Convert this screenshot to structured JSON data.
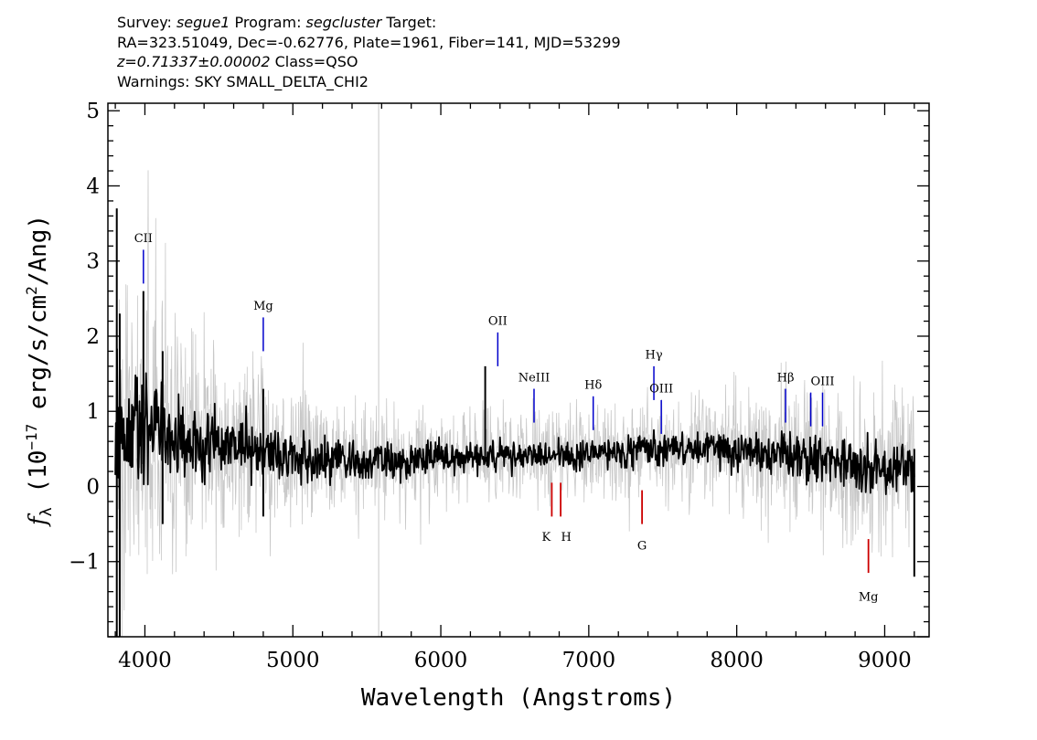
{
  "header": {
    "line1": {
      "survey_label": "Survey: ",
      "survey": "segue1",
      "program_label": " Program: ",
      "program": "segcluster",
      "target_label": " Target:"
    },
    "line2": "RA=323.51049, Dec=-0.62776, Plate=1961, Fiber=141, MJD=53299",
    "line3": {
      "z": "z=0.71337±0.00002",
      "class": " Class=QSO"
    },
    "line4": "Warnings: SKY SMALL_DELTA_CHI2"
  },
  "chart_data": {
    "type": "line",
    "xlabel": "Wavelength (Angstroms)",
    "ylabel_parts": [
      "f",
      "λ",
      " (10",
      "−17",
      " erg/s/cm",
      "2",
      "/Ang)"
    ],
    "xlim": [
      3750,
      9300
    ],
    "ylim": [
      -2.0,
      5.1
    ],
    "x_ticks": [
      4000,
      5000,
      6000,
      7000,
      8000,
      9000
    ],
    "x_tick_labels": [
      "4000",
      "5000",
      "6000",
      "7000",
      "8000",
      "9000"
    ],
    "y_ticks": [
      -1,
      0,
      1,
      2,
      3,
      4,
      5
    ],
    "y_tick_labels": [
      "−1",
      "0",
      "1",
      "2",
      "3",
      "4",
      "5"
    ],
    "x_minor_step": 200,
    "y_minor_step": 0.2,
    "series": [
      {
        "role": "flux",
        "color": "#000000",
        "x": [
          3800,
          3850,
          3900,
          3950,
          4000,
          4050,
          4100,
          4150,
          4200,
          4250,
          4300,
          4350,
          4400,
          4450,
          4500,
          4550,
          4600,
          4650,
          4700,
          4750,
          4800,
          4850,
          4900,
          4950,
          5000,
          5100,
          5200,
          5300,
          5400,
          5500,
          5600,
          5700,
          5800,
          5900,
          6000,
          6100,
          6200,
          6300,
          6400,
          6500,
          6600,
          6700,
          6800,
          6900,
          7000,
          7100,
          7200,
          7300,
          7400,
          7500,
          7600,
          7700,
          7800,
          7900,
          8000,
          8100,
          8200,
          8300,
          8400,
          8500,
          8600,
          8700,
          8800,
          8900,
          9000,
          9100,
          9200
        ],
        "y": [
          0.7,
          0.75,
          0.8,
          0.8,
          0.78,
          0.75,
          0.72,
          0.7,
          0.68,
          0.66,
          0.64,
          0.62,
          0.6,
          0.58,
          0.56,
          0.55,
          0.55,
          0.54,
          0.52,
          0.5,
          0.48,
          0.46,
          0.45,
          0.44,
          0.42,
          0.4,
          0.38,
          0.36,
          0.35,
          0.34,
          0.34,
          0.34,
          0.35,
          0.36,
          0.38,
          0.4,
          0.4,
          0.4,
          0.42,
          0.42,
          0.42,
          0.42,
          0.42,
          0.42,
          0.42,
          0.45,
          0.45,
          0.45,
          0.48,
          0.5,
          0.52,
          0.52,
          0.5,
          0.5,
          0.48,
          0.48,
          0.45,
          0.45,
          0.42,
          0.4,
          0.38,
          0.35,
          0.3,
          0.25,
          0.25,
          0.25,
          0.25
        ]
      },
      {
        "role": "error",
        "color": "#c8c8c8",
        "x": [
          3800,
          3900,
          4000,
          4100,
          4200,
          4300,
          4400,
          4500,
          4600,
          4700,
          4800,
          4900,
          5000,
          5200,
          5400,
          5600,
          5800,
          6000,
          6200,
          6400,
          6600,
          6800,
          7000,
          7200,
          7400,
          7600,
          7800,
          8000,
          8200,
          8400,
          8600,
          8800,
          9000,
          9200
        ],
        "y": [
          2.0,
          1.7,
          1.5,
          1.35,
          1.2,
          1.1,
          1.0,
          0.9,
          0.85,
          0.8,
          0.75,
          0.7,
          0.65,
          0.6,
          0.55,
          0.5,
          0.48,
          0.45,
          0.42,
          0.42,
          0.42,
          0.42,
          0.42,
          0.42,
          0.45,
          0.48,
          0.5,
          0.52,
          0.55,
          0.6,
          0.65,
          0.7,
          0.78,
          0.9
        ]
      }
    ],
    "spikes": [
      {
        "x": 3810,
        "y0": -2.0,
        "y1": 3.7,
        "color": "#000000"
      },
      {
        "x": 3830,
        "y0": -2.0,
        "y1": 2.3,
        "color": "#000000"
      },
      {
        "x": 3990,
        "y0": 0.3,
        "y1": 2.6,
        "color": "#000000"
      },
      {
        "x": 4120,
        "y0": -0.5,
        "y1": 1.8,
        "color": "#000000"
      },
      {
        "x": 4800,
        "y0": -0.4,
        "y1": 1.3,
        "color": "#000000"
      },
      {
        "x": 5580,
        "y0": -2.0,
        "y1": 5.1,
        "color": "#c8c8c8"
      },
      {
        "x": 6300,
        "y0": 0.4,
        "y1": 1.6,
        "color": "#000000"
      },
      {
        "x": 9200,
        "y0": -1.2,
        "y1": 0.5,
        "color": "#000000"
      }
    ],
    "emission_lines": [
      {
        "label": "CII",
        "x": 3990,
        "y_bottom": 2.7,
        "y_top": 3.15,
        "label_y": 3.25,
        "color": "#0000cc"
      },
      {
        "label": "Mg",
        "x": 4800,
        "y_bottom": 1.8,
        "y_top": 2.25,
        "label_y": 2.35,
        "color": "#0000cc"
      },
      {
        "label": "OII",
        "x": 6385,
        "y_bottom": 1.6,
        "y_top": 2.05,
        "label_y": 2.15,
        "color": "#0000cc"
      },
      {
        "label": "NeIII",
        "x": 6630,
        "y_bottom": 0.85,
        "y_top": 1.3,
        "label_y": 1.4,
        "color": "#0000cc"
      },
      {
        "label": "Hδ",
        "x": 7030,
        "y_bottom": 0.75,
        "y_top": 1.2,
        "label_y": 1.3,
        "color": "#0000cc"
      },
      {
        "label": "Hγ",
        "x": 7440,
        "y_bottom": 1.15,
        "y_top": 1.6,
        "label_y": 1.7,
        "color": "#0000cc"
      },
      {
        "label": "OIII",
        "x": 7490,
        "y_bottom": 0.7,
        "y_top": 1.15,
        "label_y": 1.25,
        "color": "#0000cc"
      },
      {
        "label": "Hβ",
        "x": 8330,
        "y_bottom": 0.85,
        "y_top": 1.3,
        "label_y": 1.4,
        "color": "#0000cc"
      },
      {
        "label": "",
        "x": 8500,
        "y_bottom": 0.8,
        "y_top": 1.25,
        "label_y": 1.35,
        "color": "#0000cc"
      },
      {
        "label": "OIII",
        "x": 8580,
        "y_bottom": 0.8,
        "y_top": 1.25,
        "label_y": 1.35,
        "color": "#0000cc"
      }
    ],
    "absorption_lines": [
      {
        "label": "K",
        "x": 6750,
        "y_bottom": -0.4,
        "y_top": 0.05,
        "label_y": -0.6,
        "label_dx": -6,
        "color": "#cc0000"
      },
      {
        "label": "H",
        "x": 6810,
        "y_bottom": -0.4,
        "y_top": 0.05,
        "label_y": -0.6,
        "label_dx": 6,
        "color": "#cc0000"
      },
      {
        "label": "G",
        "x": 7360,
        "y_bottom": -0.5,
        "y_top": -0.05,
        "label_y": -0.72,
        "label_dx": 0,
        "color": "#cc0000"
      },
      {
        "label": "Mg",
        "x": 8890,
        "y_bottom": -1.15,
        "y_top": -0.7,
        "label_y": -1.4,
        "label_dx": 0,
        "color": "#cc0000"
      }
    ]
  }
}
